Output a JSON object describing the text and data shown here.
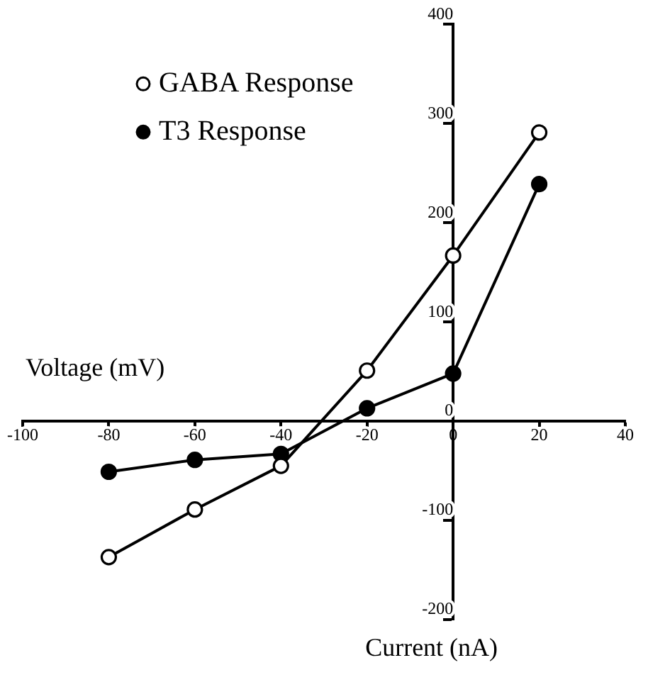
{
  "chart_data": {
    "type": "line",
    "xlabel": "Current (nA)",
    "ylabel": "Voltage (mV)",
    "x": [
      -80,
      -60,
      -40,
      -20,
      0,
      20
    ],
    "series": [
      {
        "name": "GABA Response",
        "color": "#000000",
        "values": [
          -137,
          -89,
          -45,
          51,
          167,
          291
        ]
      },
      {
        "name": "T3 Response",
        "color": "#000000",
        "values": [
          -51,
          -39,
          -33,
          13,
          48,
          239
        ]
      }
    ],
    "xlim": [
      -100,
      40
    ],
    "xticks": [
      -100,
      -80,
      -60,
      -40,
      -20,
      0,
      20,
      40
    ],
    "ylim": [
      -200,
      400
    ],
    "yticks": [
      -200,
      -100,
      0,
      100,
      200,
      300,
      400
    ],
    "grid": false,
    "legend": "top left",
    "marker": "circle",
    "line_style": "solid"
  }
}
